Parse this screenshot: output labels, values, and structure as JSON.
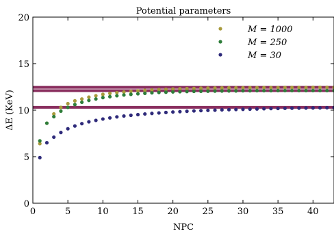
{
  "chart_data": {
    "type": "scatter",
    "title": "Potential parameters",
    "xlabel": "NPC",
    "ylabel": "ΔE (KeV)",
    "xlim": [
      0,
      43
    ],
    "ylim": [
      0,
      20
    ],
    "xticks": [
      0,
      5,
      10,
      15,
      20,
      25,
      30,
      35,
      40
    ],
    "yticks": [
      0,
      5,
      10,
      15,
      20
    ],
    "legend_position": "top-right",
    "hlines": [
      {
        "y": 12.45,
        "color": "#8a2f5f"
      },
      {
        "y": 12.1,
        "color": "#8a2f5f"
      },
      {
        "y": 10.3,
        "color": "#8a2f5f"
      }
    ],
    "series": [
      {
        "name": "M = 1000",
        "color": "#a89a3c",
        "x": [
          1,
          2,
          3,
          4,
          5,
          6,
          7,
          8,
          9,
          10,
          11,
          12,
          13,
          14,
          15,
          16,
          17,
          18,
          19,
          20,
          21,
          22,
          23,
          24,
          25,
          26,
          27,
          28,
          29,
          30,
          31,
          32,
          33,
          34,
          35,
          36,
          37,
          38,
          39,
          40,
          41,
          42,
          43
        ],
        "y": [
          6.4,
          8.6,
          9.6,
          10.3,
          10.7,
          11.0,
          11.2,
          11.4,
          11.55,
          11.7,
          11.8,
          11.88,
          11.95,
          12.02,
          12.08,
          12.13,
          12.17,
          12.21,
          12.24,
          12.27,
          12.3,
          12.32,
          12.34,
          12.36,
          12.37,
          12.38,
          12.39,
          12.4,
          12.41,
          12.41,
          12.42,
          12.42,
          12.43,
          12.43,
          12.43,
          12.44,
          12.44,
          12.44,
          12.44,
          12.45,
          12.45,
          12.45,
          12.45
        ]
      },
      {
        "name": "M = 250",
        "color": "#2e7d3a",
        "x": [
          1,
          2,
          3,
          4,
          5,
          6,
          7,
          8,
          9,
          10,
          11,
          12,
          13,
          14,
          15,
          16,
          17,
          18,
          19,
          20,
          21,
          22,
          23,
          24,
          25,
          26,
          27,
          28,
          29,
          30,
          31,
          32,
          33,
          34,
          35,
          36,
          37,
          38,
          39,
          40,
          41,
          42,
          43
        ],
        "y": [
          6.7,
          8.6,
          9.3,
          9.9,
          10.3,
          10.6,
          10.85,
          11.05,
          11.2,
          11.35,
          11.45,
          11.55,
          11.63,
          11.7,
          11.76,
          11.81,
          11.86,
          11.9,
          11.93,
          11.96,
          11.98,
          12.0,
          12.02,
          12.03,
          12.04,
          12.05,
          12.06,
          12.07,
          12.07,
          12.08,
          12.08,
          12.09,
          12.09,
          12.09,
          12.1,
          12.1,
          12.1,
          12.1,
          12.1,
          12.1,
          12.1,
          12.1,
          12.1
        ]
      },
      {
        "name": "M = 30",
        "color": "#2e2a7a",
        "x": [
          1,
          2,
          3,
          4,
          5,
          6,
          7,
          8,
          9,
          10,
          11,
          12,
          13,
          14,
          15,
          16,
          17,
          18,
          19,
          20,
          21,
          22,
          23,
          24,
          25,
          26,
          27,
          28,
          29,
          30,
          31,
          32,
          33,
          34,
          35,
          36,
          37,
          38,
          39,
          40,
          41,
          42,
          43
        ],
        "y": [
          4.9,
          6.5,
          7.1,
          7.6,
          8.0,
          8.3,
          8.55,
          8.75,
          8.9,
          9.05,
          9.17,
          9.28,
          9.37,
          9.45,
          9.52,
          9.59,
          9.65,
          9.7,
          9.75,
          9.8,
          9.84,
          9.88,
          9.92,
          9.95,
          9.98,
          10.0,
          10.03,
          10.05,
          10.07,
          10.09,
          10.11,
          10.13,
          10.15,
          10.17,
          10.18,
          10.2,
          10.21,
          10.22,
          10.23,
          10.24,
          10.25,
          10.26,
          10.27
        ]
      }
    ]
  }
}
